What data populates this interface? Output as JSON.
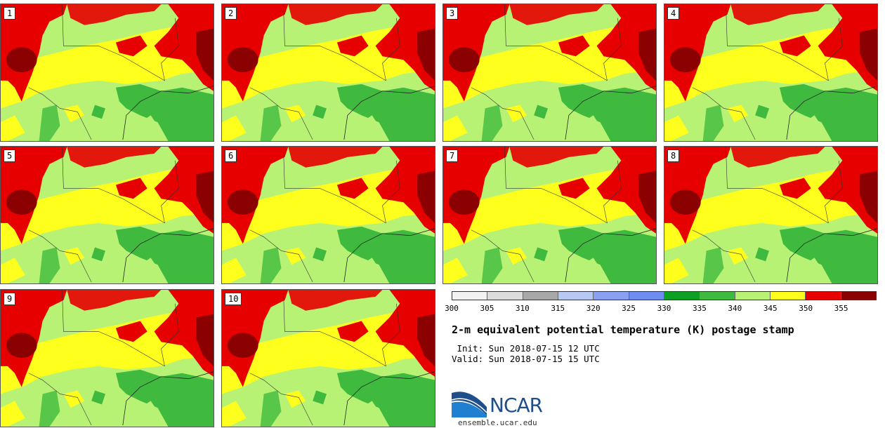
{
  "panels": [
    {
      "label": "1"
    },
    {
      "label": "2"
    },
    {
      "label": "3"
    },
    {
      "label": "4"
    },
    {
      "label": "5"
    },
    {
      "label": "6"
    },
    {
      "label": "7"
    },
    {
      "label": "8"
    },
    {
      "label": "9"
    },
    {
      "label": "10"
    }
  ],
  "colorbar": {
    "ticks": [
      "300",
      "305",
      "310",
      "315",
      "320",
      "325",
      "330",
      "335",
      "340",
      "345",
      "350",
      "355"
    ],
    "colors": [
      "#f2f2f2",
      "#dcdcdc",
      "#a8a8a8",
      "#b8c8f5",
      "#8aa0f0",
      "#6f8df0",
      "#0ea024",
      "#3fba3f",
      "#b8f274",
      "#ffff1e",
      "#e60000",
      "#8b0000"
    ]
  },
  "title": "2-m equivalent potential temperature (K) postage stamp",
  "init_line": " Init: Sun 2018-07-15 12 UTC",
  "valid_line": "Valid: Sun 2018-07-15 15 UTC",
  "logo": {
    "text": "NCAR",
    "site": "ensemble.ucar.edu"
  },
  "map_colors": {
    "light_green": "#b8f274",
    "yellow": "#ffff1e",
    "red": "#e60000",
    "dark_red": "#8b0000",
    "green": "#3fba3f"
  }
}
